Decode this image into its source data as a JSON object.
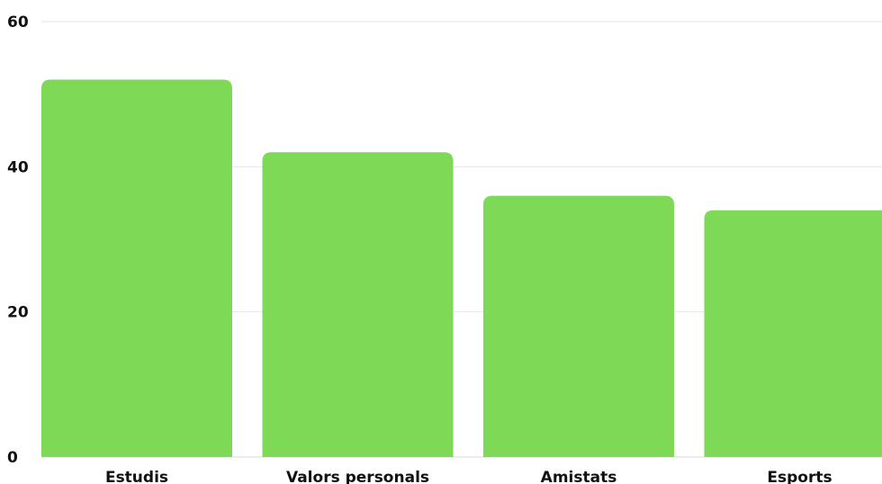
{
  "chart_data": {
    "type": "bar",
    "categories": [
      "Estudis",
      "Valors personals",
      "Amistats",
      "Esports"
    ],
    "values": [
      52,
      42,
      36,
      34
    ],
    "title": "",
    "xlabel": "",
    "ylabel": "",
    "ylim": [
      0,
      60
    ],
    "yticks": [
      "0",
      "20",
      "40",
      "60"
    ],
    "grid": true,
    "legend": "none",
    "bar_color": "#7ed957"
  }
}
